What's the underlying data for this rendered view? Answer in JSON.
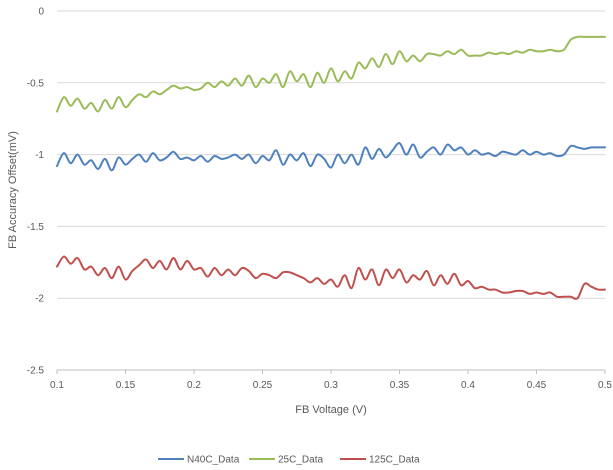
{
  "chart_data": {
    "type": "line",
    "xlabel": "FB Voltage (V)",
    "ylabel": "FB Accuracy Offset(mV)",
    "xlim": [
      0.1,
      0.5
    ],
    "ylim": [
      -2.5,
      0
    ],
    "x_ticks": [
      "0.1",
      "0.15",
      "0.2",
      "0.25",
      "0.3",
      "0.35",
      "0.4",
      "0.45",
      "0.5"
    ],
    "y_ticks": [
      "0",
      "-0.5",
      "-1",
      "-1.5",
      "-2",
      "-2.5"
    ],
    "grid": "horizontal",
    "legend_position": "bottom",
    "series": [
      {
        "name": "N40C_Data",
        "color": "#4f81bd",
        "x": [
          0.1,
          0.105,
          0.11,
          0.115,
          0.12,
          0.125,
          0.13,
          0.135,
          0.14,
          0.145,
          0.15,
          0.155,
          0.16,
          0.165,
          0.17,
          0.175,
          0.18,
          0.185,
          0.19,
          0.195,
          0.2,
          0.205,
          0.21,
          0.215,
          0.22,
          0.225,
          0.23,
          0.235,
          0.24,
          0.245,
          0.25,
          0.255,
          0.26,
          0.265,
          0.27,
          0.275,
          0.28,
          0.285,
          0.29,
          0.295,
          0.3,
          0.305,
          0.31,
          0.315,
          0.32,
          0.325,
          0.33,
          0.335,
          0.34,
          0.345,
          0.35,
          0.355,
          0.36,
          0.365,
          0.37,
          0.375,
          0.38,
          0.385,
          0.39,
          0.395,
          0.4,
          0.405,
          0.41,
          0.415,
          0.42,
          0.425,
          0.43,
          0.435,
          0.44,
          0.445,
          0.45,
          0.455,
          0.46,
          0.465,
          0.47,
          0.475,
          0.48,
          0.485,
          0.49,
          0.495,
          0.5
        ],
        "y": [
          -1.08,
          -0.99,
          -1.06,
          -1.0,
          -1.07,
          -1.04,
          -1.1,
          -1.03,
          -1.11,
          -1.02,
          -1.07,
          -1.03,
          -1.0,
          -1.05,
          -0.99,
          -1.04,
          -1.02,
          -0.98,
          -1.03,
          -1.02,
          -1.04,
          -1.01,
          -1.05,
          -1.01,
          -1.03,
          -1.02,
          -1.0,
          -1.03,
          -1.0,
          -1.06,
          -1.01,
          -1.04,
          -0.97,
          -1.07,
          -1.0,
          -1.04,
          -0.99,
          -1.08,
          -1.0,
          -1.03,
          -1.09,
          -1.0,
          -1.06,
          -1.0,
          -1.07,
          -0.95,
          -1.03,
          -0.96,
          -1.02,
          -0.97,
          -0.92,
          -1.0,
          -0.93,
          -1.02,
          -0.98,
          -0.95,
          -1.0,
          -0.93,
          -0.97,
          -0.95,
          -1.0,
          -0.97,
          -1.0,
          -0.99,
          -1.01,
          -0.98,
          -0.99,
          -1.0,
          -0.97,
          -1.0,
          -0.98,
          -1.0,
          -0.99,
          -1.01,
          -1.0,
          -0.94,
          -0.95,
          -0.96,
          -0.95,
          -0.95,
          -0.95
        ]
      },
      {
        "name": "25C_Data",
        "color": "#9bbb59",
        "x": [
          0.1,
          0.105,
          0.11,
          0.115,
          0.12,
          0.125,
          0.13,
          0.135,
          0.14,
          0.145,
          0.15,
          0.155,
          0.16,
          0.165,
          0.17,
          0.175,
          0.18,
          0.185,
          0.19,
          0.195,
          0.2,
          0.205,
          0.21,
          0.215,
          0.22,
          0.225,
          0.23,
          0.235,
          0.24,
          0.245,
          0.25,
          0.255,
          0.26,
          0.265,
          0.27,
          0.275,
          0.28,
          0.285,
          0.29,
          0.295,
          0.3,
          0.305,
          0.31,
          0.315,
          0.32,
          0.325,
          0.33,
          0.335,
          0.34,
          0.345,
          0.35,
          0.355,
          0.36,
          0.365,
          0.37,
          0.375,
          0.38,
          0.385,
          0.39,
          0.395,
          0.4,
          0.405,
          0.41,
          0.415,
          0.42,
          0.425,
          0.43,
          0.435,
          0.44,
          0.445,
          0.45,
          0.455,
          0.46,
          0.465,
          0.47,
          0.475,
          0.48,
          0.485,
          0.49,
          0.495,
          0.5
        ],
        "y": [
          -0.7,
          -0.6,
          -0.66,
          -0.61,
          -0.68,
          -0.64,
          -0.7,
          -0.62,
          -0.68,
          -0.6,
          -0.67,
          -0.62,
          -0.58,
          -0.6,
          -0.56,
          -0.58,
          -0.55,
          -0.52,
          -0.54,
          -0.53,
          -0.55,
          -0.54,
          -0.5,
          -0.53,
          -0.49,
          -0.52,
          -0.47,
          -0.52,
          -0.45,
          -0.53,
          -0.47,
          -0.5,
          -0.44,
          -0.53,
          -0.42,
          -0.49,
          -0.44,
          -0.53,
          -0.43,
          -0.5,
          -0.4,
          -0.49,
          -0.42,
          -0.47,
          -0.36,
          -0.4,
          -0.33,
          -0.39,
          -0.3,
          -0.37,
          -0.28,
          -0.35,
          -0.31,
          -0.35,
          -0.3,
          -0.3,
          -0.31,
          -0.28,
          -0.3,
          -0.27,
          -0.31,
          -0.31,
          -0.31,
          -0.29,
          -0.3,
          -0.29,
          -0.3,
          -0.28,
          -0.29,
          -0.27,
          -0.28,
          -0.28,
          -0.27,
          -0.28,
          -0.27,
          -0.2,
          -0.18,
          -0.18,
          -0.18,
          -0.18,
          -0.18
        ]
      },
      {
        "name": "125C_Data",
        "color": "#c0504d",
        "x": [
          0.1,
          0.105,
          0.11,
          0.115,
          0.12,
          0.125,
          0.13,
          0.135,
          0.14,
          0.145,
          0.15,
          0.155,
          0.16,
          0.165,
          0.17,
          0.175,
          0.18,
          0.185,
          0.19,
          0.195,
          0.2,
          0.205,
          0.21,
          0.215,
          0.22,
          0.225,
          0.23,
          0.235,
          0.24,
          0.245,
          0.25,
          0.255,
          0.26,
          0.265,
          0.27,
          0.275,
          0.28,
          0.285,
          0.29,
          0.295,
          0.3,
          0.305,
          0.31,
          0.315,
          0.32,
          0.325,
          0.33,
          0.335,
          0.34,
          0.345,
          0.35,
          0.355,
          0.36,
          0.365,
          0.37,
          0.375,
          0.38,
          0.385,
          0.39,
          0.395,
          0.4,
          0.405,
          0.41,
          0.415,
          0.42,
          0.425,
          0.43,
          0.435,
          0.44,
          0.445,
          0.45,
          0.455,
          0.46,
          0.465,
          0.47,
          0.475,
          0.48,
          0.485,
          0.49,
          0.495,
          0.5
        ],
        "y": [
          -1.78,
          -1.71,
          -1.76,
          -1.72,
          -1.8,
          -1.78,
          -1.84,
          -1.79,
          -1.86,
          -1.78,
          -1.87,
          -1.81,
          -1.77,
          -1.73,
          -1.79,
          -1.74,
          -1.8,
          -1.72,
          -1.8,
          -1.74,
          -1.8,
          -1.79,
          -1.85,
          -1.79,
          -1.84,
          -1.8,
          -1.84,
          -1.79,
          -1.81,
          -1.86,
          -1.83,
          -1.84,
          -1.86,
          -1.82,
          -1.82,
          -1.84,
          -1.86,
          -1.89,
          -1.86,
          -1.9,
          -1.87,
          -1.92,
          -1.84,
          -1.93,
          -1.79,
          -1.87,
          -1.8,
          -1.91,
          -1.8,
          -1.86,
          -1.8,
          -1.89,
          -1.84,
          -1.87,
          -1.81,
          -1.91,
          -1.84,
          -1.9,
          -1.83,
          -1.91,
          -1.88,
          -1.93,
          -1.92,
          -1.94,
          -1.94,
          -1.96,
          -1.96,
          -1.95,
          -1.95,
          -1.97,
          -1.96,
          -1.97,
          -1.96,
          -1.99,
          -1.99,
          -1.99,
          -2.0,
          -1.9,
          -1.92,
          -1.94,
          -1.94
        ]
      }
    ]
  }
}
